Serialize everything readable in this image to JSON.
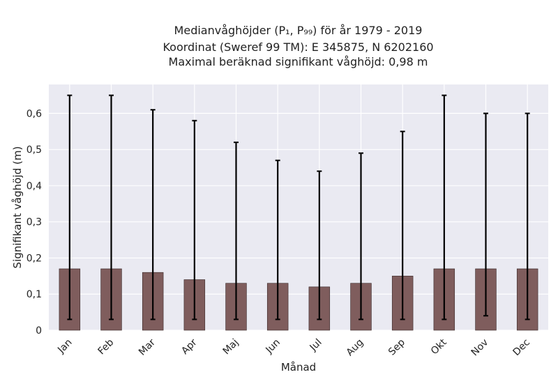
{
  "chart_data": {
    "type": "bar",
    "title_lines": [
      "Medianvåghöjder (P₁, P₉₉) för år 1979 - 2019",
      "Koordinat (Sweref 99 TM): E 345875, N 6202160",
      "Maximal beräknad signifikant våghöjd: 0,98 m"
    ],
    "xlabel": "Månad",
    "ylabel": "Signifikant våghöjd (m)",
    "categories": [
      "Jan",
      "Feb",
      "Mar",
      "Apr",
      "Maj",
      "Jun",
      "Jul",
      "Aug",
      "Sep",
      "Okt",
      "Nov",
      "Dec"
    ],
    "values": [
      0.17,
      0.17,
      0.16,
      0.14,
      0.13,
      0.13,
      0.12,
      0.13,
      0.15,
      0.17,
      0.17,
      0.17
    ],
    "error_low": [
      0.03,
      0.03,
      0.03,
      0.03,
      0.03,
      0.03,
      0.03,
      0.03,
      0.03,
      0.03,
      0.04,
      0.03
    ],
    "error_high": [
      0.65,
      0.65,
      0.61,
      0.58,
      0.52,
      0.47,
      0.44,
      0.49,
      0.55,
      0.65,
      0.6,
      0.6
    ],
    "yticks": [
      0,
      0.1,
      0.2,
      0.3,
      0.4,
      0.5,
      0.6
    ],
    "ytick_labels": [
      "0",
      "0,1",
      "0,2",
      "0,3",
      "0,4",
      "0,5",
      "0,6"
    ],
    "ylim": [
      0,
      0.68
    ],
    "grid": true,
    "colors": {
      "bar": "#7f5d5d",
      "bar_edge": "#3a2a2a",
      "error_bar": "#000000",
      "plot_bg": "#eaeaf2",
      "grid": "#ffffff"
    }
  }
}
